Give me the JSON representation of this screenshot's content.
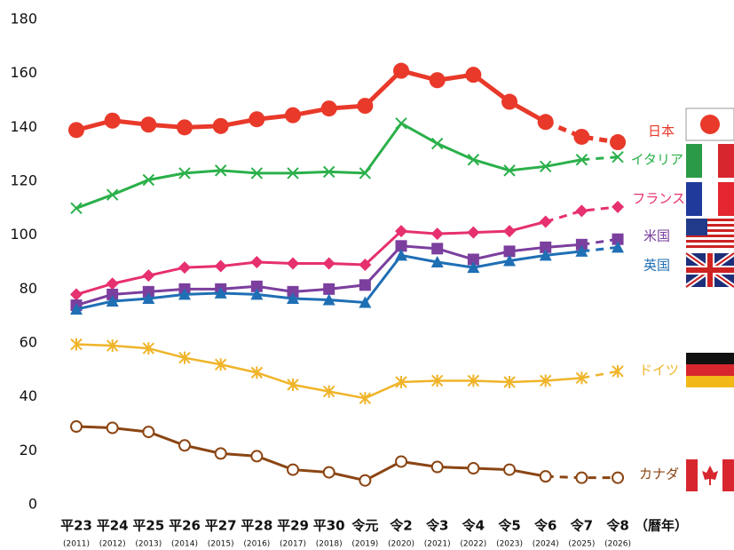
{
  "chart_data": {
    "type": "line",
    "categories": [
      "平23",
      "平24",
      "平25",
      "平26",
      "平27",
      "平28",
      "平29",
      "平30",
      "令元",
      "令2",
      "令3",
      "令4",
      "令5",
      "令6",
      "令7",
      "令8"
    ],
    "category_years": [
      "(2011)",
      "(2012)",
      "(2013)",
      "(2014)",
      "(2015)",
      "(2016)",
      "(2017)",
      "(2018)",
      "(2019)",
      "(2020)",
      "(2021)",
      "(2022)",
      "(2023)",
      "(2024)",
      "(2025)",
      "(2026)"
    ],
    "x_unit": "（暦年）",
    "ylim": [
      0,
      180
    ],
    "yticks": [
      0,
      20,
      40,
      60,
      80,
      100,
      120,
      140,
      160,
      180
    ],
    "grid": false,
    "series": [
      {
        "name": "日本",
        "color": "#e8392a",
        "marker": "circle",
        "projected_from": "令6",
        "values": [
          139,
          142.5,
          141,
          140,
          140.5,
          143,
          144.5,
          147,
          148,
          161,
          157.5,
          159.5,
          149.5,
          142,
          136.5,
          134.5
        ]
      },
      {
        "name": "イタリア",
        "color": "#2ab04a",
        "marker": "x",
        "projected_from": "令7",
        "values": [
          110,
          115,
          120.5,
          123,
          124,
          123,
          123,
          123.5,
          123,
          141.5,
          134,
          128,
          124,
          125.5,
          128,
          129
        ]
      },
      {
        "name": "フランス",
        "color": "#e6306f",
        "marker": "diamond",
        "projected_from": "令6",
        "values": [
          78,
          82,
          85,
          88,
          88.5,
          90,
          89.5,
          89.5,
          89,
          101.5,
          100.5,
          101,
          101.5,
          105,
          109,
          110.5
        ]
      },
      {
        "name": "米国",
        "color": "#7b3f9e",
        "marker": "square",
        "projected_from": "令7",
        "values": [
          74,
          78,
          79,
          80,
          80,
          81,
          79,
          80,
          81.5,
          96,
          95,
          91,
          94,
          95.5,
          96.5,
          98.5
        ]
      },
      {
        "name": "英国",
        "color": "#1f6fb5",
        "marker": "triangle",
        "projected_from": "令7",
        "values": [
          72.5,
          75.5,
          76.5,
          78,
          78.5,
          78,
          76.5,
          76,
          75,
          92.5,
          90,
          88,
          90.5,
          92.5,
          94,
          95.5
        ]
      },
      {
        "name": "ドイツ",
        "color": "#f0b429",
        "marker": "asterisk",
        "projected_from": "令7",
        "values": [
          59.5,
          59,
          58,
          54.5,
          52,
          49,
          44.5,
          42,
          39.5,
          45.5,
          46,
          46,
          45.5,
          46,
          47,
          49.5
        ]
      },
      {
        "name": "カナダ",
        "color": "#8b4513",
        "marker": "open-circle",
        "projected_from": "令6",
        "values": [
          29,
          28.5,
          27,
          22,
          19,
          18,
          13,
          12,
          9,
          16,
          14,
          13.5,
          13,
          10.5,
          10,
          10
        ]
      }
    ]
  }
}
